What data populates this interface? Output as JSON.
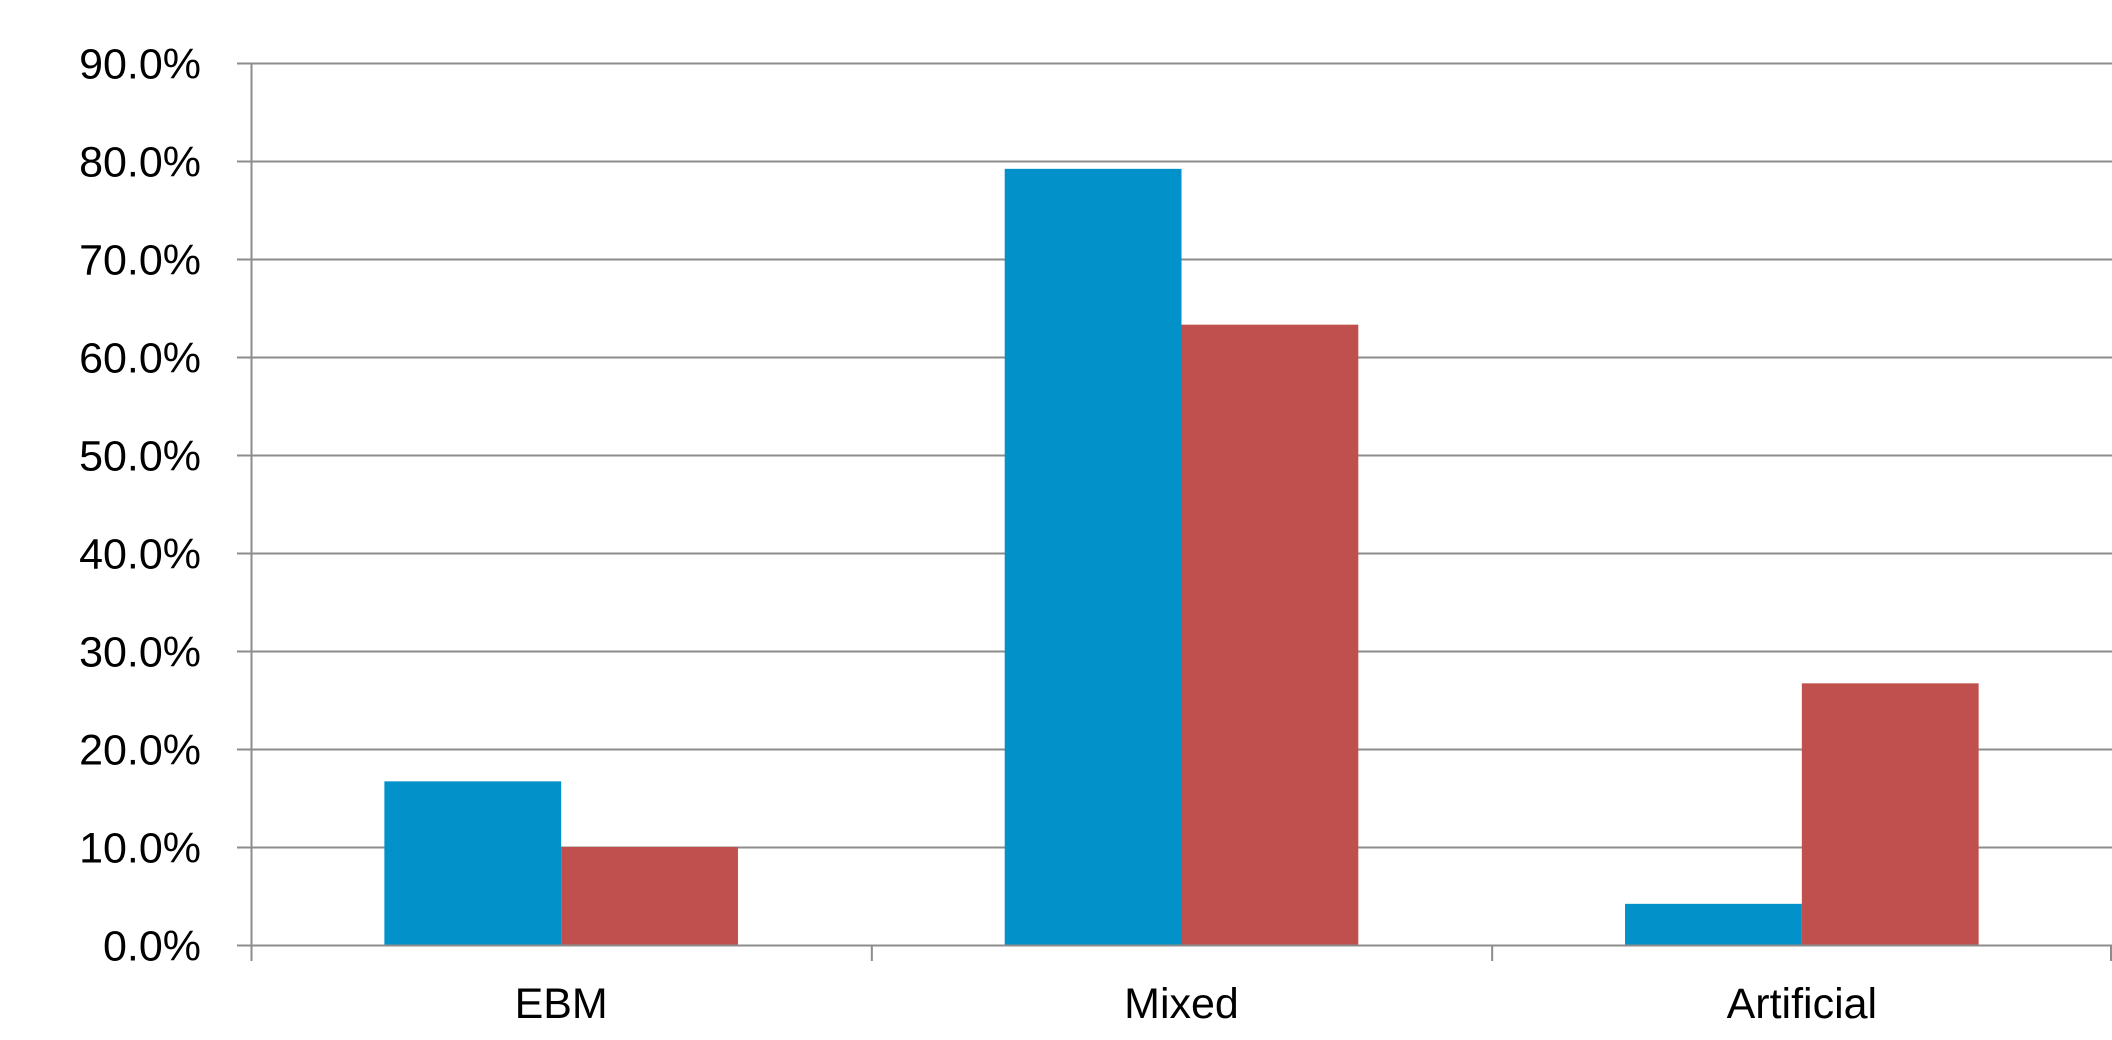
{
  "chart_data": {
    "type": "bar",
    "title": "",
    "xlabel": "",
    "ylabel": "",
    "categories": [
      "EBM",
      "Mixed",
      "Artificial"
    ],
    "series": [
      {
        "color": "#0292C9",
        "values": [
          16.7,
          79.2,
          4.2
        ]
      },
      {
        "color": "#C0504D",
        "values": [
          10.0,
          63.3,
          26.7
        ]
      }
    ],
    "ylim": [
      0,
      90
    ],
    "yticks": [
      "0.0%",
      "10.0%",
      "20.0%",
      "30.0%",
      "40.0%",
      "50.0%",
      "60.0%",
      "70.0%",
      "80.0%",
      "90.0%"
    ],
    "ytick_values": [
      0,
      10,
      20,
      30,
      40,
      50,
      60,
      70,
      80,
      90
    ],
    "grid": true,
    "legend": "none"
  },
  "colors": {
    "gridline": "#8C8C8C",
    "axis": "#8C8C8C",
    "background": "#FFFFFF"
  }
}
